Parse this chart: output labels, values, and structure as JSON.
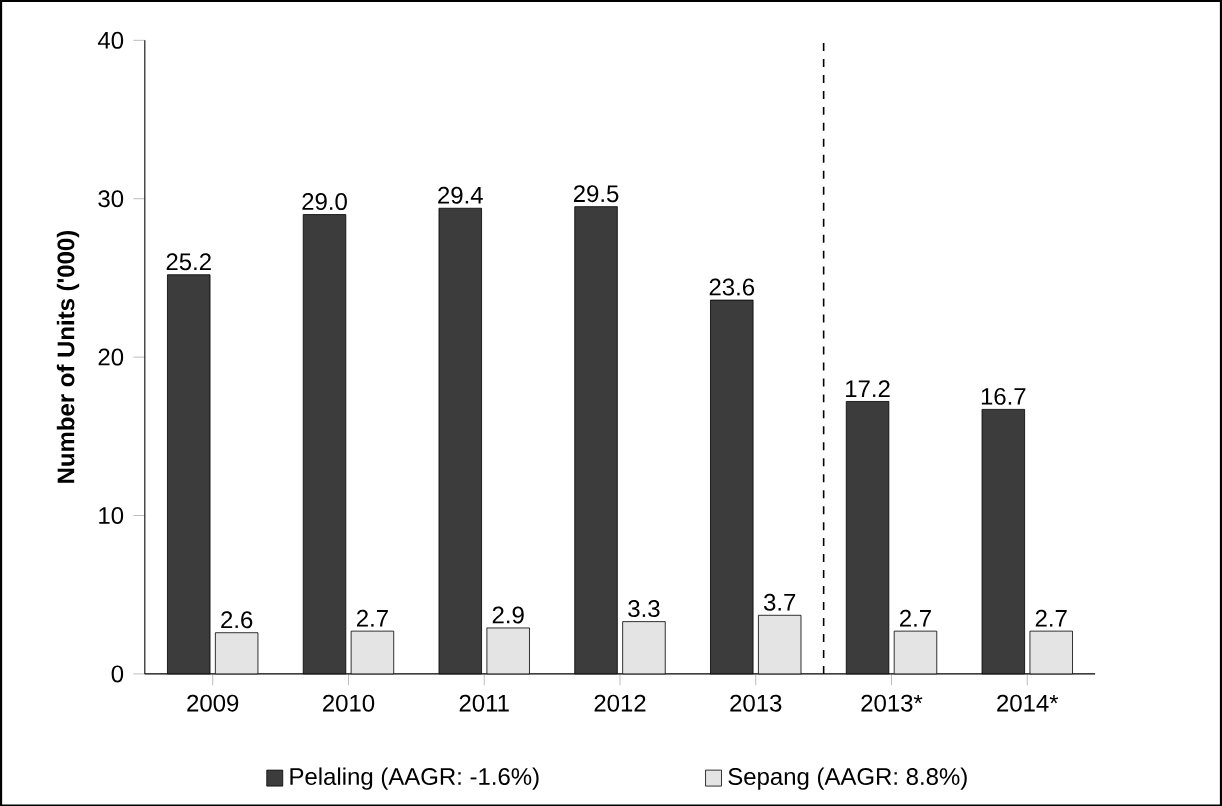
{
  "chart_data": {
    "type": "bar",
    "ylabel": "Number of Units ('000)",
    "categories": [
      "2009",
      "2010",
      "2011",
      "2012",
      "2013",
      "2013*",
      "2014*"
    ],
    "series": [
      {
        "name": "Pelaling (AAGR: -1.6%)",
        "color": "#3c3c3c",
        "values": [
          25.2,
          29.0,
          29.4,
          29.5,
          23.6,
          17.2,
          16.7
        ],
        "value_labels": [
          "25.2",
          "29.0",
          "29.4",
          "29.5",
          "23.6",
          "17.2",
          "16.7"
        ]
      },
      {
        "name": "Sepang (AAGR: 8.8%)",
        "color": "#e4e4e4",
        "values": [
          2.6,
          2.7,
          2.9,
          3.3,
          3.7,
          2.7,
          2.7
        ],
        "value_labels": [
          "2.6",
          "2.7",
          "2.9",
          "3.3",
          "3.7",
          "2.7",
          "2.7"
        ]
      }
    ],
    "ylim": [
      0,
      40
    ],
    "yticks": [
      0,
      10,
      20,
      30,
      40
    ],
    "legend": "bottom"
  }
}
